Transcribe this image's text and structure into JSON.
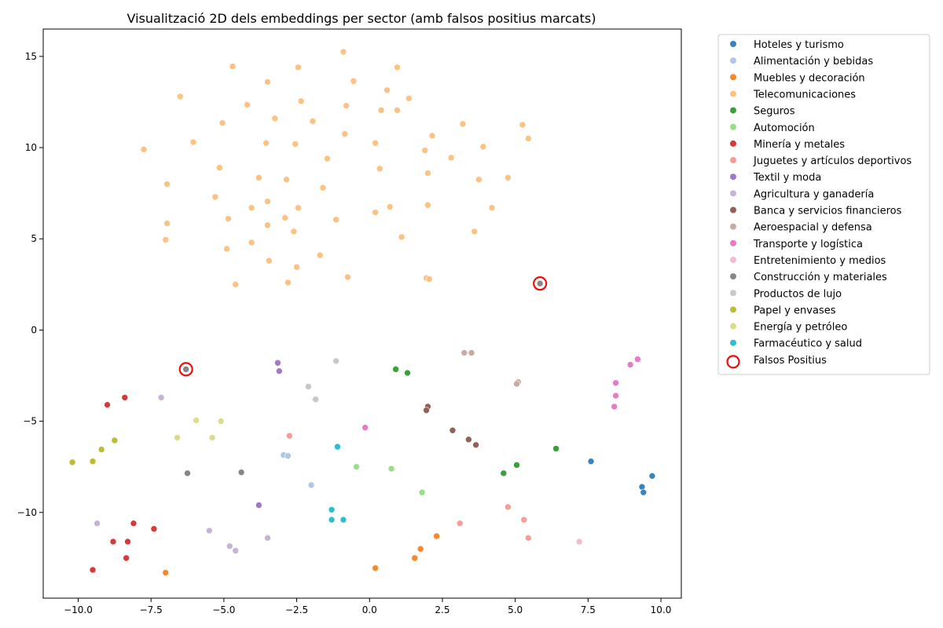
{
  "chart_data": {
    "type": "scatter",
    "title": "Visualització 2D dels embeddings per sector (amb falsos positius marcats)",
    "xlabel": "",
    "ylabel": "",
    "xlim": [
      -11.2,
      10.7
    ],
    "ylim": [
      -14.7,
      16.5
    ],
    "xticks": [
      -10.0,
      -7.5,
      -5.0,
      -2.5,
      0.0,
      2.5,
      5.0,
      7.5,
      10.0
    ],
    "xtick_labels": [
      "−10.0",
      "−7.5",
      "−5.0",
      "−2.5",
      "0.0",
      "2.5",
      "5.0",
      "7.5",
      "10.0"
    ],
    "yticks": [
      15,
      10,
      5,
      0,
      -5,
      -10
    ],
    "ytick_labels": [
      "15",
      "10",
      "5",
      "0",
      "−5",
      "−10"
    ],
    "grid": false,
    "legend_position": "outside-right",
    "series": [
      {
        "name": "Hoteles y turismo",
        "color": "#3a84bd",
        "points": [
          [
            7.6,
            -7.2
          ],
          [
            9.7,
            -8.0
          ],
          [
            9.35,
            -8.6
          ],
          [
            9.4,
            -8.9
          ]
        ]
      },
      {
        "name": "Alimentación y bebidas",
        "color": "#aec7e8",
        "points": [
          [
            -2.95,
            -6.85
          ],
          [
            -2.8,
            -6.9
          ],
          [
            -2.0,
            -8.5
          ]
        ]
      },
      {
        "name": "Muebles y decoración",
        "color": "#f5892c",
        "points": [
          [
            -7.0,
            -13.3
          ],
          [
            0.2,
            -13.05
          ],
          [
            1.55,
            -12.5
          ],
          [
            1.75,
            -12.0
          ],
          [
            2.3,
            -11.3
          ]
        ]
      },
      {
        "name": "Telecomunicaciones",
        "color": "#fdc182",
        "points": [
          [
            -0.9,
            15.25
          ],
          [
            -4.7,
            14.45
          ],
          [
            -2.45,
            14.4
          ],
          [
            0.95,
            14.4
          ],
          [
            -3.5,
            13.6
          ],
          [
            -0.55,
            13.65
          ],
          [
            0.6,
            13.15
          ],
          [
            -6.5,
            12.8
          ],
          [
            1.35,
            12.7
          ],
          [
            -2.35,
            12.55
          ],
          [
            -4.2,
            12.35
          ],
          [
            -0.8,
            12.3
          ],
          [
            0.4,
            12.05
          ],
          [
            0.95,
            12.05
          ],
          [
            -3.25,
            11.6
          ],
          [
            -1.95,
            11.45
          ],
          [
            -5.05,
            11.35
          ],
          [
            3.2,
            11.3
          ],
          [
            5.25,
            11.25
          ],
          [
            -0.85,
            10.75
          ],
          [
            2.15,
            10.65
          ],
          [
            5.45,
            10.5
          ],
          [
            -6.05,
            10.3
          ],
          [
            -3.55,
            10.25
          ],
          [
            -2.55,
            10.2
          ],
          [
            0.2,
            10.25
          ],
          [
            3.9,
            10.05
          ],
          [
            -7.75,
            9.9
          ],
          [
            1.9,
            9.85
          ],
          [
            2.8,
            9.45
          ],
          [
            -1.45,
            9.4
          ],
          [
            -5.15,
            8.9
          ],
          [
            0.35,
            8.85
          ],
          [
            2.0,
            8.6
          ],
          [
            -3.8,
            8.35
          ],
          [
            -2.85,
            8.25
          ],
          [
            4.75,
            8.35
          ],
          [
            3.75,
            8.25
          ],
          [
            -6.95,
            8.0
          ],
          [
            -1.6,
            7.8
          ],
          [
            -5.3,
            7.3
          ],
          [
            -3.5,
            7.05
          ],
          [
            -4.05,
            6.7
          ],
          [
            -2.45,
            6.7
          ],
          [
            0.7,
            6.75
          ],
          [
            2.0,
            6.85
          ],
          [
            4.2,
            6.7
          ],
          [
            0.2,
            6.45
          ],
          [
            -2.9,
            6.15
          ],
          [
            -4.85,
            6.1
          ],
          [
            -1.15,
            6.05
          ],
          [
            -6.95,
            5.85
          ],
          [
            -3.5,
            5.75
          ],
          [
            -2.6,
            5.4
          ],
          [
            3.6,
            5.4
          ],
          [
            1.1,
            5.1
          ],
          [
            -7.0,
            4.95
          ],
          [
            -4.05,
            4.8
          ],
          [
            -4.9,
            4.45
          ],
          [
            -1.7,
            4.1
          ],
          [
            -3.45,
            3.8
          ],
          [
            -2.5,
            3.45
          ],
          [
            -0.75,
            2.9
          ],
          [
            1.95,
            2.85
          ],
          [
            2.05,
            2.8
          ],
          [
            -4.6,
            2.5
          ],
          [
            -2.8,
            2.6
          ]
        ]
      },
      {
        "name": "Seguros",
        "color": "#3aa13a",
        "points": [
          [
            0.9,
            -2.15
          ],
          [
            1.3,
            -2.35
          ],
          [
            6.4,
            -6.5
          ],
          [
            5.05,
            -7.4
          ],
          [
            4.6,
            -7.85
          ]
        ]
      },
      {
        "name": "Automoción",
        "color": "#98df8a",
        "points": [
          [
            -0.45,
            -7.5
          ],
          [
            0.75,
            -7.6
          ],
          [
            1.8,
            -8.9
          ]
        ]
      },
      {
        "name": "Minería y metales",
        "color": "#d73a3a",
        "points": [
          [
            -9.0,
            -4.1
          ],
          [
            -8.4,
            -3.7
          ],
          [
            -8.1,
            -10.6
          ],
          [
            -7.4,
            -10.9
          ],
          [
            -8.3,
            -11.6
          ],
          [
            -8.8,
            -11.6
          ],
          [
            -8.35,
            -12.5
          ],
          [
            -9.5,
            -13.15
          ]
        ]
      },
      {
        "name": "Juguetes y artículos deportivos",
        "color": "#f79c99",
        "points": [
          [
            -2.75,
            -5.8
          ],
          [
            4.75,
            -9.7
          ],
          [
            5.3,
            -10.4
          ],
          [
            3.1,
            -10.6
          ],
          [
            5.45,
            -11.4
          ]
        ]
      },
      {
        "name": "Textil y moda",
        "color": "#a178c5",
        "points": [
          [
            -3.15,
            -1.8
          ],
          [
            -3.1,
            -2.25
          ],
          [
            -3.8,
            -9.6
          ]
        ]
      },
      {
        "name": "Agricultura y ganadería",
        "color": "#c8b3d8",
        "points": [
          [
            -7.15,
            -3.7
          ],
          [
            -9.35,
            -10.6
          ],
          [
            -5.5,
            -11.0
          ],
          [
            -3.5,
            -11.4
          ],
          [
            -4.8,
            -11.85
          ],
          [
            -4.6,
            -12.1
          ]
        ]
      },
      {
        "name": "Banca y servicios financieros",
        "color": "#936058",
        "points": [
          [
            2.0,
            -4.2
          ],
          [
            1.95,
            -4.4
          ],
          [
            2.85,
            -5.5
          ],
          [
            3.4,
            -6.0
          ],
          [
            3.65,
            -6.3
          ]
        ]
      },
      {
        "name": "Aeroespacial y defensa",
        "color": "#c9a9a2",
        "points": [
          [
            3.25,
            -1.25
          ],
          [
            3.5,
            -1.25
          ],
          [
            5.1,
            -2.85
          ],
          [
            5.05,
            -2.95
          ]
        ]
      },
      {
        "name": "Transporte y logística",
        "color": "#e47cc4",
        "points": [
          [
            9.2,
            -1.6
          ],
          [
            8.95,
            -1.9
          ],
          [
            8.45,
            -2.9
          ],
          [
            8.45,
            -3.6
          ],
          [
            8.4,
            -4.2
          ],
          [
            -0.15,
            -5.35
          ]
        ]
      },
      {
        "name": "Entretenimiento y medios",
        "color": "#f6b9d2",
        "points": [
          [
            7.2,
            -11.6
          ]
        ]
      },
      {
        "name": "Construcción y materiales",
        "color": "#868686",
        "points": [
          [
            -6.3,
            -2.15
          ],
          [
            5.85,
            2.55
          ],
          [
            -6.25,
            -7.85
          ],
          [
            -4.4,
            -7.8
          ]
        ]
      },
      {
        "name": "Productos de lujo",
        "color": "#c8c8c8",
        "points": [
          [
            -1.15,
            -1.7
          ],
          [
            -2.1,
            -3.1
          ],
          [
            -1.85,
            -3.8
          ]
        ]
      },
      {
        "name": "Papel y envases",
        "color": "#bcbd32",
        "points": [
          [
            -8.75,
            -6.05
          ],
          [
            -9.2,
            -6.55
          ],
          [
            -10.2,
            -7.25
          ],
          [
            -9.5,
            -7.2
          ]
        ]
      },
      {
        "name": "Energía y petróleo",
        "color": "#dbdb8d",
        "points": [
          [
            -5.95,
            -4.95
          ],
          [
            -5.1,
            -5.0
          ],
          [
            -6.6,
            -5.9
          ],
          [
            -5.4,
            -5.9
          ]
        ]
      },
      {
        "name": "Farmacéutico y salud",
        "color": "#2cbed0",
        "points": [
          [
            -1.1,
            -6.4
          ],
          [
            -1.3,
            -9.85
          ],
          [
            -1.3,
            -10.4
          ],
          [
            -0.9,
            -10.4
          ]
        ]
      }
    ],
    "highlight": {
      "name": "Falsos Positius",
      "color": "#e8100e",
      "points": [
        [
          -6.3,
          -2.15
        ],
        [
          5.85,
          2.55
        ]
      ]
    }
  }
}
